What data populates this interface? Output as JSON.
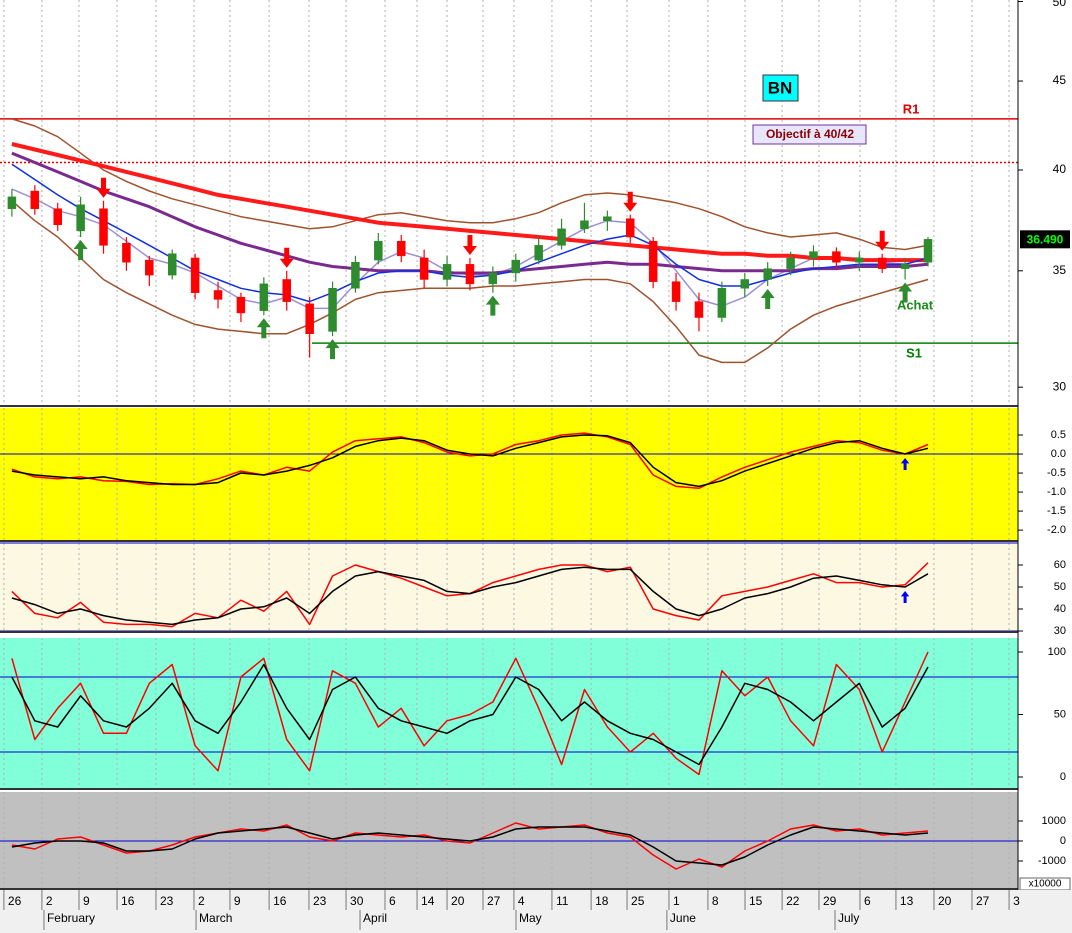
{
  "chart_data": [
    {
      "type": "candlestick",
      "xlim": [
        -0.52,
        43.93
      ],
      "ylim": [
        29.3,
        50.1
      ],
      "log": true,
      "yticks": [
        30,
        35,
        40,
        45,
        50
      ],
      "background": "#ffffff",
      "open": [
        38.0,
        38.9,
        38.0,
        36.9,
        38.0,
        36.3,
        35.5,
        34.8,
        35.6,
        34.1,
        33.8,
        33.2,
        34.6,
        33.5,
        32.3,
        34.2,
        35.5,
        36.4,
        35.6,
        34.6,
        35.3,
        34.4,
        34.9,
        35.5,
        36.2,
        37.0,
        37.4,
        37.5,
        36.4,
        34.5,
        33.6,
        32.9,
        34.2,
        34.6,
        35.1,
        35.6,
        35.9,
        35.4,
        35.6,
        35.1,
        35.4
      ],
      "high": [
        39.0,
        39.2,
        38.3,
        38.6,
        38.4,
        36.6,
        35.7,
        36.0,
        35.8,
        34.5,
        34.0,
        34.7,
        35.0,
        33.8,
        34.5,
        35.7,
        36.8,
        36.7,
        36.0,
        35.7,
        35.6,
        35.2,
        35.8,
        36.6,
        37.5,
        38.3,
        37.9,
        37.7,
        36.6,
        34.9,
        34.0,
        34.5,
        34.9,
        35.4,
        35.9,
        36.2,
        36.1,
        35.9,
        35.8,
        35.6,
        36.6
      ],
      "low": [
        37.6,
        37.7,
        36.9,
        36.6,
        35.8,
        35.0,
        34.3,
        34.6,
        33.7,
        33.3,
        32.7,
        33.0,
        33.2,
        31.2,
        32.1,
        34.0,
        35.3,
        35.4,
        34.2,
        34.3,
        34.1,
        34.0,
        34.5,
        35.3,
        36.0,
        36.8,
        36.9,
        36.3,
        34.2,
        33.2,
        32.3,
        32.7,
        33.8,
        34.3,
        34.8,
        35.2,
        35.1,
        35.0,
        34.9,
        34.6,
        35.2
      ],
      "close": [
        38.6,
        38.0,
        37.2,
        38.2,
        36.2,
        35.4,
        34.8,
        35.8,
        34.0,
        33.7,
        33.1,
        34.4,
        33.6,
        32.2,
        34.2,
        35.4,
        36.4,
        35.7,
        34.6,
        35.3,
        34.4,
        34.9,
        35.5,
        36.2,
        37.0,
        37.4,
        37.6,
        36.6,
        34.5,
        33.6,
        32.9,
        34.2,
        34.6,
        35.1,
        35.6,
        35.9,
        35.4,
        35.6,
        35.1,
        35.3,
        36.49
      ],
      "up_color": "#2e8b2e",
      "down_color": "#ff0000",
      "series": [
        {
          "color": "#a0522d",
          "width": 1.5,
          "values": [
            42.8,
            42.4,
            41.8,
            40.9,
            40.0,
            39.4,
            38.9,
            38.5,
            38.2,
            37.9,
            37.6,
            37.4,
            37.2,
            37.0,
            37.1,
            37.4,
            37.7,
            37.8,
            37.6,
            37.4,
            37.3,
            37.3,
            37.5,
            37.8,
            38.3,
            38.7,
            38.8,
            38.7,
            38.5,
            38.3,
            38.0,
            37.6,
            37.1,
            36.8,
            36.6,
            36.7,
            36.8,
            36.5,
            36.1,
            36.0,
            36.2
          ]
        },
        {
          "color": "#a0522d",
          "width": 1.5,
          "values": [
            38.4,
            37.4,
            36.6,
            35.6,
            34.6,
            34.0,
            33.5,
            33.0,
            32.6,
            32.4,
            32.3,
            32.2,
            32.2,
            32.6,
            33.1,
            33.7,
            34.0,
            34.1,
            34.2,
            34.2,
            34.2,
            34.3,
            34.3,
            34.4,
            34.5,
            34.6,
            34.6,
            34.4,
            33.6,
            32.5,
            31.3,
            31.0,
            31.0,
            31.6,
            32.4,
            33.0,
            33.4,
            33.7,
            34.0,
            34.3,
            34.6
          ]
        },
        {
          "color": "#9a90d8",
          "width": 1.5,
          "values": [
            39.0,
            38.5,
            37.9,
            37.6,
            37.2,
            36.4,
            35.6,
            35.3,
            34.9,
            34.3,
            33.7,
            33.5,
            33.8,
            33.3,
            33.3,
            34.4,
            35.4,
            35.9,
            35.6,
            35.0,
            34.8,
            34.8,
            35.2,
            35.8,
            36.4,
            37.0,
            37.4,
            37.3,
            36.3,
            35.0,
            33.7,
            33.4,
            33.8,
            34.6,
            35.1,
            35.6,
            35.6,
            35.6,
            35.4,
            35.3,
            35.6
          ]
        },
        {
          "color": "#7a2a8e",
          "width": 3,
          "values": [
            40.9,
            40.4,
            39.9,
            39.4,
            38.9,
            38.5,
            38.1,
            37.6,
            37.1,
            36.7,
            36.3,
            36.0,
            35.7,
            35.4,
            35.2,
            35.1,
            35.0,
            35.0,
            35.0,
            34.9,
            34.9,
            34.9,
            35.0,
            35.1,
            35.2,
            35.3,
            35.4,
            35.3,
            35.3,
            35.2,
            35.1,
            35.0,
            35.0,
            35.0,
            35.0,
            35.1,
            35.1,
            35.2,
            35.2,
            35.2,
            35.3
          ]
        },
        {
          "color": "#ff1a1a",
          "width": 4,
          "values": [
            41.4,
            41.1,
            40.8,
            40.5,
            40.2,
            39.9,
            39.6,
            39.3,
            39.0,
            38.7,
            38.5,
            38.3,
            38.1,
            37.9,
            37.7,
            37.5,
            37.3,
            37.2,
            37.1,
            37.0,
            36.9,
            36.8,
            36.7,
            36.6,
            36.5,
            36.4,
            36.3,
            36.2,
            36.1,
            36.0,
            35.9,
            35.8,
            35.8,
            35.7,
            35.7,
            35.6,
            35.6,
            35.5,
            35.5,
            35.5,
            35.5
          ]
        },
        {
          "color": "#1030e0",
          "width": 1.5,
          "values": [
            40.3,
            39.5,
            38.7,
            38.0,
            37.4,
            36.8,
            36.2,
            35.6,
            35.0,
            34.6,
            34.2,
            34.0,
            33.9,
            33.6,
            34.0,
            34.5,
            34.9,
            35.0,
            35.0,
            34.8,
            34.7,
            34.8,
            35.0,
            35.4,
            35.8,
            36.2,
            36.5,
            36.7,
            36.2,
            35.3,
            34.6,
            34.3,
            34.3,
            34.6,
            34.9,
            35.1,
            35.2,
            35.3,
            35.3,
            35.3,
            35.6
          ]
        }
      ],
      "levels": [
        {
          "value": 42.8,
          "color": "#e00000",
          "style": "solid"
        },
        {
          "value": 40.4,
          "color": "#e00000",
          "style": "dotted"
        },
        {
          "value": 31.8,
          "color": "#008000",
          "style": "solid",
          "start": 13.1
        }
      ],
      "sell_signals": [
        4,
        12,
        20,
        27,
        38
      ],
      "buy_signals": [
        3,
        11,
        14,
        21,
        33,
        39
      ],
      "last": {
        "value": 36.49,
        "label": "36.490"
      },
      "annotations": {
        "symbol": "BN",
        "target": "Objectif à 40/42",
        "resistance": "R1",
        "support": "S1",
        "signal": "Achat"
      }
    },
    {
      "type": "line",
      "xlim": [
        -0.52,
        43.93
      ],
      "ylim": [
        -2.26,
        1.21
      ],
      "background": "#ffff00",
      "yticks": [
        0.5,
        {
          "value": 0,
          "label": "0.0"
        },
        -0.5,
        {
          "value": -1,
          "label": "-1.0"
        },
        -1.5,
        {
          "value": -2,
          "label": "-2.0"
        }
      ],
      "levels": [
        0
      ],
      "level_color": "#0000cc",
      "buy_signals": [
        39
      ],
      "signal_color": "#0000ff",
      "series": [
        {
          "color": "#ff0000",
          "width": 1.5,
          "values": [
            -0.4,
            -0.6,
            -0.65,
            -0.6,
            -0.7,
            -0.72,
            -0.8,
            -0.78,
            -0.8,
            -0.65,
            -0.45,
            -0.55,
            -0.35,
            -0.45,
            0.05,
            0.35,
            0.4,
            0.45,
            0.3,
            0.05,
            -0.05,
            0.0,
            0.25,
            0.35,
            0.5,
            0.55,
            0.45,
            0.25,
            -0.55,
            -0.85,
            -0.9,
            -0.6,
            -0.35,
            -0.15,
            0.05,
            0.2,
            0.35,
            0.3,
            0.1,
            0.0,
            0.25
          ]
        },
        {
          "color": "#000000",
          "width": 1.5,
          "values": [
            -0.45,
            -0.55,
            -0.6,
            -0.65,
            -0.6,
            -0.7,
            -0.75,
            -0.8,
            -0.8,
            -0.75,
            -0.5,
            -0.55,
            -0.45,
            -0.3,
            -0.1,
            0.2,
            0.35,
            0.42,
            0.35,
            0.1,
            0.0,
            -0.05,
            0.15,
            0.3,
            0.45,
            0.5,
            0.48,
            0.3,
            -0.35,
            -0.75,
            -0.85,
            -0.7,
            -0.45,
            -0.25,
            -0.05,
            0.15,
            0.3,
            0.35,
            0.15,
            0.0,
            0.15
          ]
        }
      ]
    },
    {
      "type": "line",
      "xlim": [
        -0.52,
        43.93
      ],
      "ylim": [
        30,
        70
      ],
      "background": "#fdf8e2",
      "yticks": [
        30,
        40,
        50,
        60
      ],
      "levels": [
        30,
        70
      ],
      "level_color": "#0000cc",
      "buy_signals": [
        39
      ],
      "signal_color": "#0000ff",
      "series": [
        {
          "color": "#ff0000",
          "width": 1.5,
          "values": [
            48,
            38,
            36,
            43,
            34,
            33,
            33,
            32,
            38,
            36,
            44,
            39,
            48,
            33,
            55,
            60,
            57,
            54,
            50,
            46,
            47,
            52,
            55,
            58,
            60,
            60,
            57,
            59,
            40,
            37,
            35,
            46,
            48,
            50,
            53,
            56,
            52,
            52,
            50,
            51,
            61
          ]
        },
        {
          "color": "#000000",
          "width": 1.5,
          "values": [
            45,
            42,
            38,
            40,
            37,
            35,
            34,
            33,
            35,
            36,
            40,
            41,
            45,
            38,
            48,
            55,
            57,
            55,
            53,
            48,
            47,
            50,
            52,
            55,
            58,
            59,
            58,
            58,
            48,
            40,
            37,
            40,
            45,
            47,
            50,
            54,
            55,
            53,
            51,
            50,
            56
          ]
        }
      ]
    },
    {
      "type": "line",
      "xlim": [
        -0.52,
        43.93
      ],
      "ylim": [
        -8.8,
        111.2
      ],
      "background": "#80ffd8",
      "yticks": [
        0,
        50,
        100
      ],
      "levels": [
        20,
        80
      ],
      "level_color": "#0000cc",
      "series": [
        {
          "color": "#ff0000",
          "width": 1.5,
          "values": [
            95,
            30,
            55,
            75,
            35,
            35,
            75,
            90,
            25,
            5,
            80,
            95,
            30,
            5,
            85,
            75,
            40,
            55,
            25,
            45,
            50,
            60,
            95,
            55,
            10,
            70,
            40,
            20,
            35,
            15,
            2,
            85,
            65,
            80,
            45,
            25,
            90,
            70,
            20,
            60,
            100
          ]
        },
        {
          "color": "#000000",
          "width": 1.5,
          "values": [
            80,
            45,
            40,
            65,
            45,
            40,
            55,
            75,
            45,
            35,
            60,
            90,
            55,
            30,
            70,
            80,
            55,
            45,
            40,
            35,
            45,
            50,
            80,
            70,
            45,
            60,
            45,
            35,
            30,
            20,
            10,
            40,
            75,
            70,
            60,
            45,
            60,
            75,
            40,
            55,
            88
          ]
        }
      ]
    },
    {
      "type": "line",
      "xlim": [
        -0.52,
        43.93
      ],
      "ylim": [
        -2350,
        2450
      ],
      "background": "#c0c0c0",
      "yticks": [
        -1000,
        0,
        1000
      ],
      "levels": [
        0
      ],
      "level_color": "#0000cc",
      "scale_note": "x10000",
      "series": [
        {
          "color": "#ff0000",
          "width": 1.5,
          "values": [
            -200,
            -400,
            100,
            200,
            -200,
            -600,
            -500,
            -200,
            200,
            400,
            600,
            500,
            800,
            200,
            0,
            400,
            300,
            200,
            300,
            0,
            -100,
            400,
            900,
            600,
            700,
            800,
            400,
            200,
            -700,
            -1400,
            -900,
            -1300,
            -500,
            0,
            600,
            800,
            500,
            600,
            300,
            400,
            500
          ]
        },
        {
          "color": "#000000",
          "width": 1.5,
          "values": [
            -300,
            -100,
            0,
            0,
            -100,
            -500,
            -500,
            -400,
            100,
            400,
            500,
            600,
            700,
            400,
            100,
            300,
            400,
            300,
            200,
            100,
            0,
            200,
            600,
            700,
            700,
            700,
            500,
            300,
            -300,
            -1000,
            -1100,
            -1200,
            -800,
            -200,
            300,
            700,
            600,
            500,
            400,
            300,
            400
          ]
        }
      ],
      "xticks": [
        {
          "value": -0.35,
          "label": "26"
        },
        {
          "value": 1.31,
          "label": "2"
        },
        {
          "value": 2.93,
          "label": "9"
        },
        {
          "value": 4.59,
          "label": "16"
        },
        {
          "value": 6.29,
          "label": "23"
        },
        {
          "value": 7.95,
          "label": "2"
        },
        {
          "value": 9.52,
          "label": "9"
        },
        {
          "value": 11.23,
          "label": "16"
        },
        {
          "value": 12.97,
          "label": "23"
        },
        {
          "value": 14.59,
          "label": "30"
        },
        {
          "value": 16.29,
          "label": "6"
        },
        {
          "value": 17.69,
          "label": "14"
        },
        {
          "value": 19.0,
          "label": "20"
        },
        {
          "value": 20.57,
          "label": "27"
        },
        {
          "value": 21.92,
          "label": "4"
        },
        {
          "value": 23.58,
          "label": "11"
        },
        {
          "value": 25.29,
          "label": "18"
        },
        {
          "value": 26.86,
          "label": "25"
        },
        {
          "value": 28.69,
          "label": "1"
        },
        {
          "value": 30.39,
          "label": "8"
        },
        {
          "value": 32.01,
          "label": "15"
        },
        {
          "value": 33.63,
          "label": "22"
        },
        {
          "value": 35.24,
          "label": "29"
        },
        {
          "value": 37.03,
          "label": "6"
        },
        {
          "value": 38.6,
          "label": "13"
        },
        {
          "value": 40.26,
          "label": "20"
        },
        {
          "value": 41.92,
          "label": "27"
        },
        {
          "value": 43.54,
          "label": "3"
        }
      ],
      "months": [
        {
          "value": 1.4,
          "label": "February"
        },
        {
          "value": 8.04,
          "label": "March"
        },
        {
          "value": 15.2,
          "label": "April"
        },
        {
          "value": 22.01,
          "label": "May"
        },
        {
          "value": 28.6,
          "label": "June"
        },
        {
          "value": 35.94,
          "label": "July"
        }
      ]
    }
  ]
}
